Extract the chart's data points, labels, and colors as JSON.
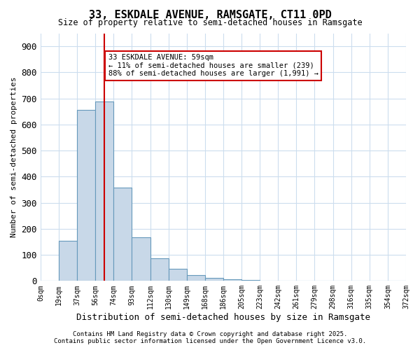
{
  "title": "33, ESKDALE AVENUE, RAMSGATE, CT11 0PD",
  "subtitle": "Size of property relative to semi-detached houses in Ramsgate",
  "xlabel": "Distribution of semi-detached houses by size in Ramsgate",
  "ylabel": "Number of semi-detached properties",
  "annotation_line1": "33 ESKDALE AVENUE: 59sqm",
  "annotation_line2": "← 11% of semi-detached houses are smaller (239)",
  "annotation_line3": "88% of semi-detached houses are larger (1,991) →",
  "footer_line1": "Contains HM Land Registry data © Crown copyright and database right 2025.",
  "footer_line2": "Contains public sector information licensed under the Open Government Licence v3.0.",
  "bar_color": "#c8d8e8",
  "bar_edge_color": "#6699bb",
  "vline_color": "#cc0000",
  "annotation_box_color": "#cc0000",
  "background_color": "#ffffff",
  "grid_color": "#ccddee",
  "tick_labels": [
    "0sqm",
    "19sqm",
    "37sqm",
    "56sqm",
    "74sqm",
    "93sqm",
    "112sqm",
    "130sqm",
    "149sqm",
    "168sqm",
    "186sqm",
    "205sqm",
    "223sqm",
    "242sqm",
    "261sqm",
    "279sqm",
    "298sqm",
    "316sqm",
    "335sqm",
    "354sqm",
    "372sqm"
  ],
  "bar_values": [
    0,
    153,
    656,
    687,
    358,
    167,
    86,
    47,
    23,
    12,
    6,
    3,
    1,
    1,
    0,
    0,
    0,
    0,
    0,
    0
  ],
  "vline_x": 3,
  "ylim": [
    0,
    950
  ],
  "yticks": [
    0,
    100,
    200,
    300,
    400,
    500,
    600,
    700,
    800,
    900
  ],
  "n_bars": 20
}
